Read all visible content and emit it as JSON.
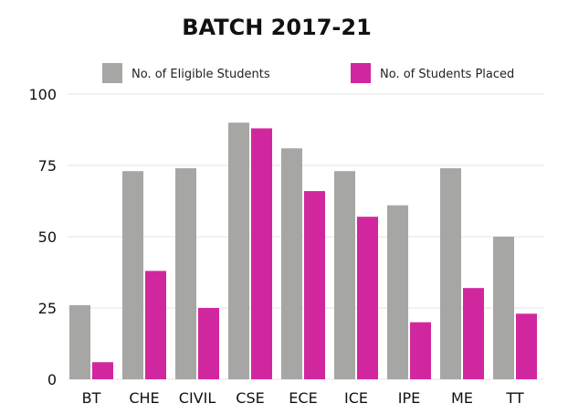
{
  "chart_data": {
    "type": "bar",
    "title": "BATCH 2017-21",
    "xlabel": "",
    "ylabel": "",
    "categories": [
      "BT",
      "CHE",
      "CIVIL",
      "CSE",
      "ECE",
      "ICE",
      "IPE",
      "ME",
      "TT"
    ],
    "series": [
      {
        "name": "No. of Eligible Students",
        "color": "#a6a6a4",
        "values": [
          26,
          73,
          74,
          90,
          81,
          73,
          61,
          74,
          50
        ]
      },
      {
        "name": "No. of Students Placed",
        "color": "#d1279e",
        "values": [
          6,
          38,
          25,
          88,
          66,
          57,
          20,
          32,
          23
        ]
      }
    ],
    "ylim": [
      0,
      100
    ],
    "yticks": [
      "0",
      "25",
      "50",
      "75",
      "100"
    ],
    "grid": true,
    "legend_position": "top"
  }
}
